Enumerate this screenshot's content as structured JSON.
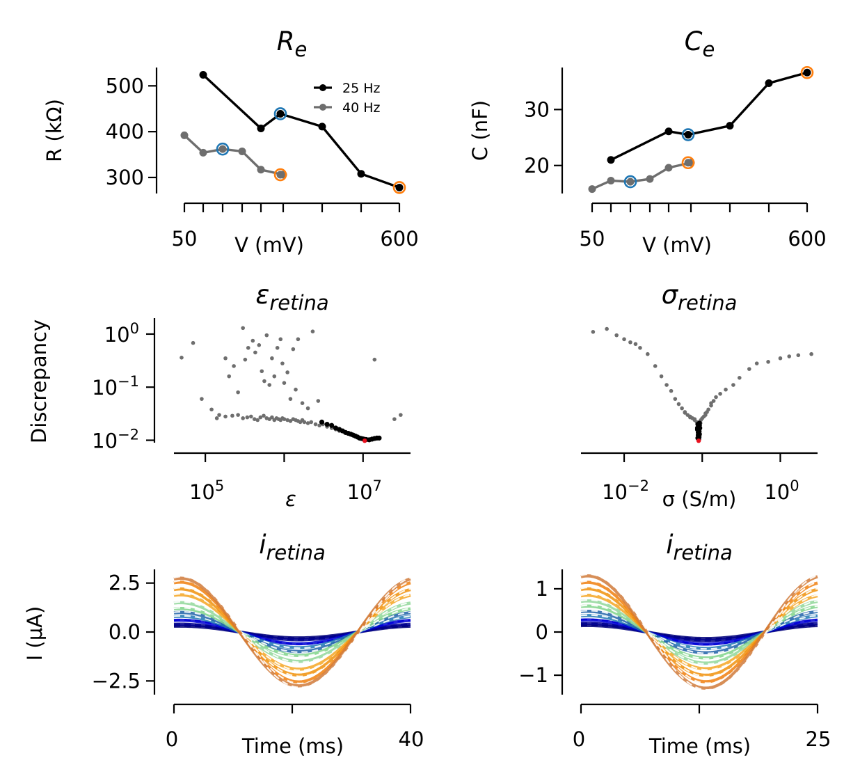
{
  "colors": {
    "black_series": "#000000",
    "gray_series": "#6e6e6e",
    "selected_blue": "#1f77b4",
    "selected_orange": "#ff7f0e",
    "best_fit_red": "#e8101e",
    "trace_colors": [
      "#00007a",
      "#00008f",
      "#0000d6",
      "#1f77b4",
      "#1f62a8",
      "#7fd48a",
      "#90d79a",
      "#f5a623",
      "#f0900a",
      "#f07f0e",
      "#d07a3a"
    ]
  },
  "chart_data": [
    {
      "id": "re",
      "type": "line",
      "title": "R",
      "title_sub": "e",
      "xlabel": "V (mV)",
      "ylabel": "R (kΩ)",
      "xticks": [
        50,
        600
      ],
      "xticklabels": [
        "50",
        "600"
      ],
      "yticks": [
        300,
        400,
        500
      ],
      "yticklabels": [
        "300",
        "400",
        "500"
      ],
      "ylim": [
        265,
        540
      ],
      "legend_position": "top-right",
      "series": [
        {
          "name": "25 Hz",
          "x": [
            75,
            150,
            250,
            350,
            475,
            600
          ],
          "y": [
            524,
            407,
            439,
            411,
            308,
            278
          ]
        },
        {
          "name": "40 Hz",
          "x": [
            50,
            75,
            100,
            125,
            150,
            175,
            250
          ],
          "y": [
            392,
            354,
            362,
            357,
            317,
            306,
            306
          ]
        }
      ],
      "highlights": [
        {
          "x": 100,
          "y": 362,
          "color": "selected_blue"
        },
        {
          "x": 250,
          "y": 306,
          "color": "selected_orange"
        },
        {
          "x": 250,
          "y": 439,
          "color": "selected_blue"
        },
        {
          "x": 600,
          "y": 278,
          "color": "selected_orange"
        }
      ]
    },
    {
      "id": "ce",
      "type": "line",
      "title": "C",
      "title_sub": "e",
      "xlabel": "V (mV)",
      "ylabel": "C (nF)",
      "xticks": [
        50,
        600
      ],
      "xticklabels": [
        "50",
        "600"
      ],
      "yticks": [
        20,
        30
      ],
      "yticklabels": [
        "20",
        "30"
      ],
      "ylim": [
        15,
        37.5
      ],
      "series": [
        {
          "x": [
            75,
            150,
            250,
            350,
            475,
            600
          ],
          "y": [
            21.0,
            26.1,
            25.5,
            27.1,
            34.7,
            36.6
          ]
        },
        {
          "x": [
            50,
            75,
            100,
            125,
            150,
            175,
            250
          ],
          "y": [
            15.8,
            17.3,
            17.1,
            17.6,
            19.6,
            20.5,
            20.5
          ]
        }
      ],
      "highlights": [
        {
          "x": 100,
          "y": 17.1,
          "color": "selected_blue"
        },
        {
          "x": 250,
          "y": 20.5,
          "color": "selected_orange"
        },
        {
          "x": 250,
          "y": 25.5,
          "color": "selected_blue"
        },
        {
          "x": 600,
          "y": 36.6,
          "color": "selected_orange"
        }
      ]
    },
    {
      "id": "eps",
      "type": "scatter",
      "title": "ε",
      "title_sub": "retina",
      "xlabel": "ε",
      "ylabel": "Discrepancy",
      "xscale": "log",
      "yscale": "log",
      "xlim": [
        40000,
        40000000
      ],
      "ylim": [
        0.009,
        2.0
      ],
      "xticks": [
        100000,
        10000000
      ],
      "xticklabels": [
        {
          "base": "10",
          "exp": "5"
        },
        {
          "base": "10",
          "exp": "7"
        }
      ],
      "yticks": [
        0.01,
        0.1,
        1
      ],
      "yticklabels": [
        {
          "base": "10",
          "exp": "−2"
        },
        {
          "base": "10",
          "exp": "−1"
        },
        {
          "base": "10",
          "exp": "0"
        }
      ],
      "gray_points": [
        [
          50000,
          0.36
        ],
        [
          70000,
          0.68
        ],
        [
          90000,
          0.06
        ],
        [
          120000,
          0.038
        ],
        [
          150000,
          0.03
        ],
        [
          180000,
          0.35
        ],
        [
          200000,
          0.16
        ],
        [
          230000,
          0.25
        ],
        [
          260000,
          0.08
        ],
        [
          300000,
          1.3
        ],
        [
          320000,
          0.33
        ],
        [
          350000,
          0.55
        ],
        [
          400000,
          0.75
        ],
        [
          430000,
          0.45
        ],
        [
          480000,
          0.62
        ],
        [
          520000,
          0.2
        ],
        [
          560000,
          0.13
        ],
        [
          600000,
          0.95
        ],
        [
          650000,
          0.11
        ],
        [
          700000,
          0.35
        ],
        [
          750000,
          0.16
        ],
        [
          820000,
          0.55
        ],
        [
          900000,
          0.8
        ],
        [
          950000,
          0.28
        ],
        [
          1000000,
          0.12
        ],
        [
          1100000,
          0.19
        ],
        [
          1200000,
          0.06
        ],
        [
          1300000,
          0.52
        ],
        [
          1400000,
          0.09
        ],
        [
          1500000,
          0.8
        ],
        [
          1700000,
          0.05
        ],
        [
          2000000,
          0.04
        ],
        [
          2300000,
          1.12
        ],
        [
          2700000,
          0.055
        ],
        [
          14000000,
          0.33
        ],
        [
          25000000,
          0.025
        ],
        [
          30000000,
          0.03
        ],
        [
          140000,
          0.026
        ],
        [
          180000,
          0.028
        ],
        [
          220000,
          0.029
        ],
        [
          260000,
          0.03
        ],
        [
          300000,
          0.026
        ],
        [
          340000,
          0.027
        ],
        [
          380000,
          0.028
        ],
        [
          420000,
          0.025
        ],
        [
          460000,
          0.024
        ],
        [
          500000,
          0.027
        ],
        [
          550000,
          0.029
        ],
        [
          600000,
          0.026
        ],
        [
          650000,
          0.025
        ],
        [
          700000,
          0.027
        ],
        [
          750000,
          0.024
        ],
        [
          800000,
          0.026
        ],
        [
          850000,
          0.025
        ],
        [
          900000,
          0.024
        ],
        [
          950000,
          0.026
        ],
        [
          1000000,
          0.025
        ],
        [
          1100000,
          0.024
        ],
        [
          1200000,
          0.023
        ],
        [
          1300000,
          0.025
        ],
        [
          1400000,
          0.024
        ],
        [
          1500000,
          0.023
        ],
        [
          1600000,
          0.022
        ],
        [
          1700000,
          0.024
        ],
        [
          1800000,
          0.022
        ],
        [
          2000000,
          0.021
        ],
        [
          2200000,
          0.022
        ],
        [
          2500000,
          0.02
        ],
        [
          2800000,
          0.019
        ],
        [
          3100000,
          0.02
        ],
        [
          3500000,
          0.018
        ],
        [
          4000000,
          0.017
        ],
        [
          4500000,
          0.016
        ],
        [
          5000000,
          0.015
        ]
      ],
      "black_points": [
        [
          3000000,
          0.022
        ],
        [
          3500000,
          0.02
        ],
        [
          4000000,
          0.019
        ],
        [
          4500000,
          0.017
        ],
        [
          5000000,
          0.016
        ],
        [
          5500000,
          0.015
        ],
        [
          6000000,
          0.014
        ],
        [
          6500000,
          0.0135
        ],
        [
          7000000,
          0.013
        ],
        [
          7500000,
          0.0125
        ],
        [
          8000000,
          0.012
        ],
        [
          8500000,
          0.0115
        ],
        [
          9000000,
          0.011
        ],
        [
          9500000,
          0.0108
        ],
        [
          10000000,
          0.0106
        ],
        [
          10500000,
          0.0104
        ],
        [
          11000000,
          0.0103
        ],
        [
          12000000,
          0.0102
        ],
        [
          13000000,
          0.0105
        ],
        [
          14000000,
          0.0108
        ],
        [
          15000000,
          0.011
        ],
        [
          16000000,
          0.011
        ]
      ],
      "best_point": [
        10500000,
        0.0098
      ]
    },
    {
      "id": "sigma",
      "type": "scatter",
      "title": "σ",
      "title_sub": "retina",
      "xlabel": "σ (S/m)",
      "xscale": "log",
      "yscale": "log",
      "xlim": [
        0.0028,
        3.0
      ],
      "ylim": [
        0.009,
        2.0
      ],
      "xticks": [
        0.01,
        1
      ],
      "xticklabels": [
        {
          "base": "10",
          "exp": "−2"
        },
        {
          "base": "10",
          "exp": "0"
        }
      ],
      "gray_points": [
        [
          0.004,
          1.1
        ],
        [
          0.006,
          1.25
        ],
        [
          0.008,
          0.95
        ],
        [
          0.01,
          0.8
        ],
        [
          0.012,
          0.7
        ],
        [
          0.014,
          0.65
        ],
        [
          0.016,
          0.55
        ],
        [
          0.02,
          0.42
        ],
        [
          0.025,
          0.25
        ],
        [
          0.03,
          0.16
        ],
        [
          0.035,
          0.11
        ],
        [
          0.04,
          0.085
        ],
        [
          0.045,
          0.06
        ],
        [
          0.05,
          0.048
        ],
        [
          0.055,
          0.04
        ],
        [
          0.06,
          0.034
        ],
        [
          0.065,
          0.03
        ],
        [
          0.07,
          0.028
        ],
        [
          0.075,
          0.026
        ],
        [
          0.08,
          0.024
        ],
        [
          0.085,
          0.022
        ],
        [
          0.088,
          0.021
        ],
        [
          0.092,
          0.022
        ],
        [
          0.096,
          0.024
        ],
        [
          0.1,
          0.026
        ],
        [
          0.105,
          0.028
        ],
        [
          0.11,
          0.03
        ],
        [
          0.115,
          0.034
        ],
        [
          0.12,
          0.038
        ],
        [
          0.13,
          0.045
        ],
        [
          0.14,
          0.055
        ],
        [
          0.15,
          0.065
        ],
        [
          0.17,
          0.075
        ],
        [
          0.2,
          0.09
        ],
        [
          0.25,
          0.11
        ],
        [
          0.3,
          0.15
        ],
        [
          0.4,
          0.22
        ],
        [
          0.5,
          0.28
        ],
        [
          0.7,
          0.3
        ],
        [
          1,
          0.35
        ],
        [
          1.3,
          0.38
        ],
        [
          1.7,
          0.4
        ],
        [
          2.5,
          0.42
        ],
        [
          0.06,
          0.033
        ],
        [
          0.07,
          0.027
        ],
        [
          0.11,
          0.032
        ],
        [
          0.13,
          0.05
        ],
        [
          0.09,
          0.02
        ],
        [
          0.095,
          0.021
        ],
        [
          0.08,
          0.025
        ]
      ],
      "black_points": [
        [
          0.088,
          0.011
        ],
        [
          0.09,
          0.012
        ],
        [
          0.092,
          0.013
        ],
        [
          0.089,
          0.014
        ],
        [
          0.091,
          0.015
        ],
        [
          0.087,
          0.016
        ],
        [
          0.093,
          0.017
        ],
        [
          0.09,
          0.018
        ],
        [
          0.088,
          0.02
        ],
        [
          0.092,
          0.021
        ],
        [
          0.09,
          0.0105
        ],
        [
          0.091,
          0.0115
        ],
        [
          0.089,
          0.0125
        ],
        [
          0.09,
          0.0135
        ],
        [
          0.091,
          0.0145
        ],
        [
          0.089,
          0.0155
        ],
        [
          0.092,
          0.019
        ],
        [
          0.087,
          0.017
        ]
      ],
      "best_point": [
        0.09,
        0.0098
      ]
    },
    {
      "id": "i40",
      "type": "line",
      "title": "i",
      "title_sub": "retina",
      "xlabel": "Time (ms)",
      "ylabel": "I (μA)",
      "xlim": [
        0,
        40
      ],
      "xticks": [
        0,
        20,
        40
      ],
      "xticklabels": [
        "0",
        "",
        "40"
      ],
      "ylim": [
        -3.2,
        3.2
      ],
      "yticks": [
        -2.5,
        0.0,
        2.5
      ],
      "yticklabels": [
        "−2.5",
        "0.0",
        "2.5"
      ],
      "period_ms": 40,
      "phase_shift_ms": 4,
      "amplitudes": [
        0.3,
        0.4,
        0.6,
        0.8,
        1.0,
        1.2,
        1.5,
        1.9,
        2.2,
        2.55,
        2.75
      ]
    },
    {
      "id": "i25",
      "type": "line",
      "title": "i",
      "title_sub": "retina",
      "xlabel": "Time (ms)",
      "xlim": [
        0,
        25
      ],
      "xticks": [
        0,
        12.5,
        25
      ],
      "xticklabels": [
        "0",
        "",
        "25"
      ],
      "ylim": [
        -1.45,
        1.45
      ],
      "yticks": [
        -1,
        0,
        1
      ],
      "yticklabels": [
        "−1",
        "0",
        "1"
      ],
      "period_ms": 25,
      "phase_shift_ms": 2.5,
      "amplitudes": [
        0.15,
        0.2,
        0.28,
        0.38,
        0.48,
        0.6,
        0.72,
        0.85,
        1.0,
        1.15,
        1.3
      ]
    }
  ]
}
